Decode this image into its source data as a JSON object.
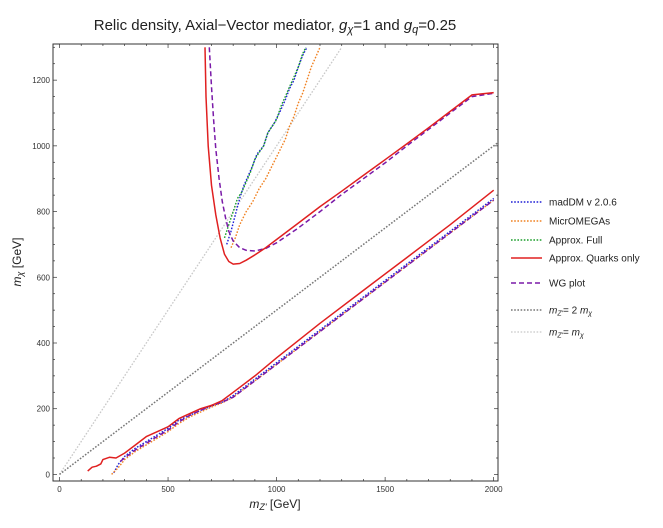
{
  "chart_data": {
    "type": "line",
    "title_parts": [
      {
        "text": "Relic density, Axial−Vector mediator, ",
        "italic": false,
        "sub": false
      },
      {
        "text": "g",
        "italic": true,
        "sub": false
      },
      {
        "text": "χ",
        "italic": true,
        "sub": true
      },
      {
        "text": "=1 and ",
        "italic": false,
        "sub": false
      },
      {
        "text": "g",
        "italic": true,
        "sub": false
      },
      {
        "text": "q",
        "italic": true,
        "sub": true
      },
      {
        "text": "=0.25",
        "italic": false,
        "sub": false
      }
    ],
    "xlabel_parts": [
      {
        "text": "m",
        "italic": true,
        "sub": false
      },
      {
        "text": "Z'",
        "italic": true,
        "sub": true
      },
      {
        "text": " [GeV]",
        "italic": false,
        "sub": false
      }
    ],
    "ylabel_parts": [
      {
        "text": "m",
        "italic": true,
        "sub": false
      },
      {
        "text": "χ",
        "italic": true,
        "sub": true
      },
      {
        "text": " [GeV]",
        "italic": false,
        "sub": false
      }
    ],
    "xlim": [
      -30,
      2020
    ],
    "ylim": [
      -20,
      1310
    ],
    "xticks": [
      0,
      500,
      1000,
      1500,
      2000
    ],
    "yticks": [
      0,
      200,
      400,
      600,
      800,
      1000,
      1200
    ],
    "grid": false,
    "legend_position": "right",
    "series": [
      {
        "name_parts": [
          {
            "text": "madDM v 2.0.6",
            "italic": false,
            "sub": false
          }
        ],
        "color": "#1f1fd6",
        "dash": "dotted",
        "width": 1.4,
        "segments": [
          [
            [
              250,
              5
            ],
            [
              270,
              30
            ],
            [
              300,
              55
            ],
            [
              350,
              80
            ],
            [
              400,
              100
            ],
            [
              450,
              120
            ],
            [
              500,
              140
            ],
            [
              550,
              165
            ],
            [
              600,
              180
            ],
            [
              650,
              195
            ],
            [
              700,
              208
            ],
            [
              750,
              220
            ],
            [
              800,
              240
            ],
            [
              900,
              290
            ],
            [
              1000,
              340
            ],
            [
              1200,
              440
            ],
            [
              1400,
              540
            ],
            [
              1600,
              640
            ],
            [
              1800,
              740
            ],
            [
              2000,
              840
            ]
          ],
          [
            [
              770,
              700
            ],
            [
              790,
              740
            ],
            [
              810,
              790
            ],
            [
              830,
              840
            ],
            [
              850,
              880
            ],
            [
              870,
              910
            ],
            [
              890,
              940
            ],
            [
              910,
              975
            ],
            [
              940,
              1000
            ],
            [
              960,
              1040
            ],
            [
              990,
              1070
            ],
            [
              1020,
              1110
            ],
            [
              1040,
              1140
            ],
            [
              1060,
              1175
            ],
            [
              1080,
              1200
            ],
            [
              1100,
              1240
            ],
            [
              1120,
              1275
            ],
            [
              1140,
              1300
            ]
          ]
        ]
      },
      {
        "name_parts": [
          {
            "text": "MicrOMEGAs",
            "italic": false,
            "sub": false
          }
        ],
        "color": "#f08020",
        "dash": "dotted",
        "width": 1.4,
        "segments": [
          [
            [
              240,
              0
            ],
            [
              270,
              20
            ],
            [
              300,
              45
            ],
            [
              350,
              70
            ],
            [
              400,
              90
            ],
            [
              450,
              110
            ],
            [
              500,
              130
            ],
            [
              550,
              155
            ],
            [
              600,
              175
            ],
            [
              650,
              190
            ],
            [
              700,
              205
            ],
            [
              750,
              218
            ],
            [
              800,
              235
            ],
            [
              900,
              285
            ],
            [
              1000,
              335
            ],
            [
              1200,
              435
            ],
            [
              1400,
              535
            ],
            [
              1600,
              635
            ],
            [
              1800,
              735
            ],
            [
              2000,
              835
            ]
          ],
          [
            [
              790,
              690
            ],
            [
              810,
              720
            ],
            [
              830,
              760
            ],
            [
              860,
              800
            ],
            [
              890,
              830
            ],
            [
              920,
              870
            ],
            [
              950,
              900
            ],
            [
              980,
              940
            ],
            [
              1010,
              980
            ],
            [
              1040,
              1020
            ],
            [
              1060,
              1060
            ],
            [
              1080,
              1090
            ],
            [
              1100,
              1130
            ],
            [
              1120,
              1160
            ],
            [
              1140,
              1200
            ],
            [
              1160,
              1240
            ],
            [
              1180,
              1270
            ],
            [
              1200,
              1300
            ]
          ]
        ]
      },
      {
        "name_parts": [
          {
            "text": "Approx. Full",
            "italic": false,
            "sub": false
          }
        ],
        "color": "#1a9e2a",
        "dash": "dotted",
        "width": 1.4,
        "segments": [
          [
            [
              760,
              720
            ],
            [
              780,
              760
            ],
            [
              800,
              800
            ],
            [
              820,
              840
            ],
            [
              840,
              860
            ],
            [
              860,
              890
            ],
            [
              880,
              920
            ],
            [
              900,
              960
            ],
            [
              920,
              980
            ],
            [
              940,
              1000
            ],
            [
              960,
              1040
            ],
            [
              980,
              1060
            ],
            [
              1000,
              1080
            ],
            [
              1020,
              1120
            ],
            [
              1040,
              1150
            ],
            [
              1060,
              1180
            ],
            [
              1080,
              1210
            ],
            [
              1100,
              1240
            ],
            [
              1120,
              1280
            ],
            [
              1135,
              1300
            ]
          ]
        ]
      },
      {
        "name_parts": [
          {
            "text": "Approx. Quarks only",
            "italic": false,
            "sub": false
          }
        ],
        "color": "#e02020",
        "dash": "solid",
        "width": 1.5,
        "segments": [
          [
            [
              130,
              10
            ],
            [
              150,
              22
            ],
            [
              170,
              25
            ],
            [
              190,
              32
            ],
            [
              200,
              45
            ],
            [
              230,
              52
            ],
            [
              260,
              50
            ],
            [
              300,
              65
            ],
            [
              350,
              90
            ],
            [
              400,
              115
            ],
            [
              450,
              130
            ],
            [
              500,
              145
            ],
            [
              550,
              170
            ],
            [
              600,
              185
            ],
            [
              650,
              200
            ],
            [
              700,
              210
            ],
            [
              750,
              225
            ],
            [
              800,
              250
            ],
            [
              900,
              300
            ],
            [
              1000,
              355
            ],
            [
              1200,
              460
            ],
            [
              1400,
              560
            ],
            [
              1600,
              660
            ],
            [
              1800,
              760
            ],
            [
              2000,
              865
            ]
          ],
          [
            [
              670,
              1300
            ],
            [
              675,
              1150
            ],
            [
              685,
              1000
            ],
            [
              700,
              880
            ],
            [
              720,
              790
            ],
            [
              740,
              720
            ],
            [
              760,
              670
            ],
            [
              780,
              648
            ],
            [
              800,
              640
            ],
            [
              830,
              642
            ],
            [
              860,
              652
            ],
            [
              900,
              668
            ],
            [
              950,
              690
            ],
            [
              1000,
              715
            ],
            [
              1100,
              765
            ],
            [
              1200,
              815
            ],
            [
              1300,
              862
            ],
            [
              1400,
              910
            ],
            [
              1500,
              958
            ],
            [
              1600,
              1006
            ],
            [
              1700,
              1055
            ],
            [
              1800,
              1105
            ],
            [
              1900,
              1155
            ],
            [
              2000,
              1162
            ]
          ]
        ]
      },
      {
        "name_parts": [
          {
            "text": "WG plot",
            "italic": false,
            "sub": false
          }
        ],
        "color": "#7a1aa8",
        "dash": "dashed",
        "width": 1.5,
        "segments": [
          [
            [
              280,
              40
            ],
            [
              300,
              50
            ],
            [
              350,
              75
            ],
            [
              400,
              95
            ],
            [
              450,
              115
            ],
            [
              500,
              135
            ],
            [
              550,
              160
            ],
            [
              600,
              180
            ],
            [
              650,
              195
            ],
            [
              700,
              210
            ],
            [
              750,
              220
            ],
            [
              800,
              235
            ],
            [
              900,
              285
            ],
            [
              1000,
              335
            ],
            [
              1200,
              435
            ],
            [
              1400,
              535
            ],
            [
              1600,
              635
            ],
            [
              1800,
              735
            ],
            [
              2000,
              835
            ]
          ],
          [
            [
              690,
              1300
            ],
            [
              700,
              1180
            ],
            [
              710,
              1080
            ],
            [
              720,
              990
            ],
            [
              735,
              900
            ],
            [
              750,
              830
            ],
            [
              765,
              780
            ],
            [
              780,
              740
            ],
            [
              800,
              710
            ],
            [
              830,
              690
            ],
            [
              860,
              682
            ],
            [
              900,
              680
            ],
            [
              950,
              688
            ],
            [
              1000,
              705
            ],
            [
              1100,
              750
            ],
            [
              1200,
              800
            ],
            [
              1300,
              852
            ],
            [
              1400,
              900
            ],
            [
              1500,
              948
            ],
            [
              1600,
              1000
            ],
            [
              1700,
              1050
            ],
            [
              1800,
              1100
            ],
            [
              1900,
              1150
            ],
            [
              2000,
              1160
            ]
          ]
        ]
      },
      {
        "name_parts": [
          {
            "text": "m",
            "italic": true,
            "sub": false
          },
          {
            "text": "Z'",
            "italic": true,
            "sub": true
          },
          {
            "text": "= 2 ",
            "italic": false,
            "sub": false
          },
          {
            "text": "m",
            "italic": true,
            "sub": false
          },
          {
            "text": "χ",
            "italic": true,
            "sub": true
          }
        ],
        "color": "#777777",
        "dash": "dotted",
        "width": 1.5,
        "segments": [
          [
            [
              0,
              0
            ],
            [
              2030,
              1015
            ]
          ]
        ]
      },
      {
        "name_parts": [
          {
            "text": "m",
            "italic": true,
            "sub": false
          },
          {
            "text": "Z'",
            "italic": true,
            "sub": true
          },
          {
            "text": "= ",
            "italic": false,
            "sub": false
          },
          {
            "text": "m",
            "italic": true,
            "sub": false
          },
          {
            "text": "χ",
            "italic": true,
            "sub": true
          }
        ],
        "color": "#c8c8c8",
        "dash": "dotted",
        "width": 1.3,
        "segments": [
          [
            [
              0,
              0
            ],
            [
              1300,
              1300
            ]
          ]
        ]
      }
    ]
  }
}
